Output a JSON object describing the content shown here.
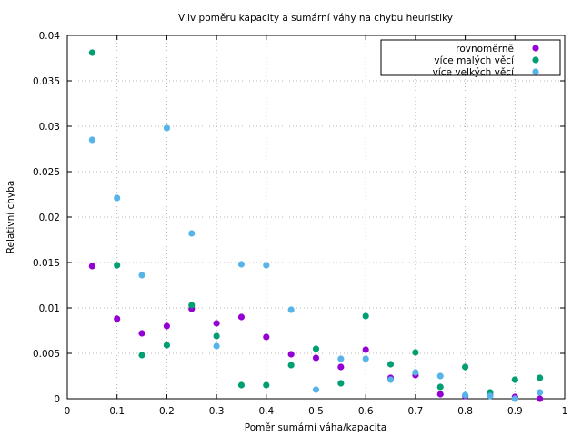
{
  "chart_data": {
    "type": "scatter",
    "title": "Vliv poměru kapacity a sumární váhy na chybu heuristiky",
    "xlabel": "Poměr sumární váha/kapacita",
    "ylabel": "Relativní chyba",
    "xlim": [
      0,
      1
    ],
    "ylim": [
      0,
      0.04
    ],
    "xticks": [
      0,
      0.1,
      0.2,
      0.3,
      0.4,
      0.5,
      0.6,
      0.7,
      0.8,
      0.9,
      1
    ],
    "xtick_labels": [
      "0",
      "0.1",
      "0.2",
      "0.3",
      "0.4",
      "0.5",
      "0.6",
      "0.7",
      "0.8",
      "0.9",
      "1"
    ],
    "yticks": [
      0,
      0.005,
      0.01,
      0.015,
      0.02,
      0.025,
      0.03,
      0.035,
      0.04
    ],
    "ytick_labels": [
      "0",
      "0.005",
      "0.01",
      "0.015",
      "0.02",
      "0.025",
      "0.03",
      "0.035",
      "0.04"
    ],
    "grid": true,
    "legend_position": "top-right",
    "series": [
      {
        "name": "rovnoměrně",
        "color": "#9400d3",
        "x": [
          0.05,
          0.1,
          0.15,
          0.2,
          0.25,
          0.3,
          0.35,
          0.4,
          0.45,
          0.5,
          0.55,
          0.6,
          0.65,
          0.7,
          0.75,
          0.8,
          0.85,
          0.9,
          0.95
        ],
        "y": [
          0.0146,
          0.0088,
          0.0072,
          0.008,
          0.0099,
          0.0083,
          0.009,
          0.0068,
          0.0049,
          0.0045,
          0.0035,
          0.0054,
          0.0023,
          0.0026,
          0.0005,
          0.0003,
          0.0004,
          0.0002,
          0.0
        ]
      },
      {
        "name": "více malých věcí",
        "color": "#009e73",
        "x": [
          0.05,
          0.1,
          0.15,
          0.2,
          0.25,
          0.3,
          0.35,
          0.4,
          0.45,
          0.5,
          0.55,
          0.6,
          0.65,
          0.7,
          0.75,
          0.8,
          0.85,
          0.9,
          0.95
        ],
        "y": [
          0.0381,
          0.0147,
          0.0048,
          0.0059,
          0.0103,
          0.0069,
          0.0015,
          0.0015,
          0.0037,
          0.0055,
          0.0017,
          0.0091,
          0.0038,
          0.0051,
          0.0013,
          0.0035,
          0.0007,
          0.0021,
          0.0023
        ]
      },
      {
        "name": "více velkých věcí",
        "color": "#56b4e9",
        "x": [
          0.05,
          0.1,
          0.15,
          0.2,
          0.25,
          0.3,
          0.35,
          0.4,
          0.45,
          0.5,
          0.55,
          0.6,
          0.65,
          0.7,
          0.75,
          0.8,
          0.85,
          0.9,
          0.95
        ],
        "y": [
          0.0285,
          0.0221,
          0.0136,
          0.0298,
          0.0182,
          0.0058,
          0.0148,
          0.0147,
          0.0098,
          0.001,
          0.0044,
          0.0044,
          0.0021,
          0.0029,
          0.0025,
          0.0004,
          0.0003,
          0.0,
          0.0007
        ]
      }
    ]
  }
}
